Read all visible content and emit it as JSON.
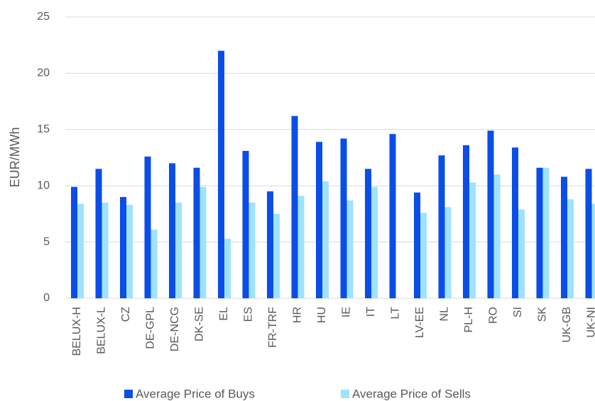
{
  "chart_data": {
    "type": "bar",
    "y_label": "EUR/MWh",
    "categories": [
      "BELUX-H",
      "BELUX-L",
      "CZ",
      "DE-GPL",
      "DE-NCG",
      "DK-SE",
      "EL",
      "ES",
      "FR-TRF",
      "HR",
      "HU",
      "IE",
      "IT",
      "LT",
      "LV-EE",
      "NL",
      "PL-H",
      "RO",
      "SI",
      "SK",
      "UK-GB",
      "UK-NI"
    ],
    "series": [
      {
        "name": "Average Price of Buys",
        "color": "#0b4de8",
        "values": [
          9.9,
          11.5,
          9.0,
          12.6,
          12.0,
          11.6,
          22.0,
          13.1,
          9.5,
          16.2,
          13.9,
          14.2,
          11.5,
          14.6,
          9.4,
          12.7,
          13.6,
          14.9,
          13.4,
          11.6,
          10.8,
          11.5
        ]
      },
      {
        "name": "Average Price of Sells",
        "color": "#9ee3fb",
        "values": [
          8.4,
          8.5,
          8.3,
          6.1,
          8.5,
          9.9,
          5.3,
          8.5,
          7.5,
          9.1,
          10.4,
          8.7,
          9.9,
          null,
          7.6,
          8.1,
          10.3,
          11.0,
          7.9,
          11.6,
          8.8,
          8.4
        ]
      }
    ],
    "ylim": [
      0,
      25
    ],
    "yticks": [
      0,
      5,
      10,
      15,
      20,
      25
    ],
    "grid": true,
    "legend": "bottom"
  }
}
